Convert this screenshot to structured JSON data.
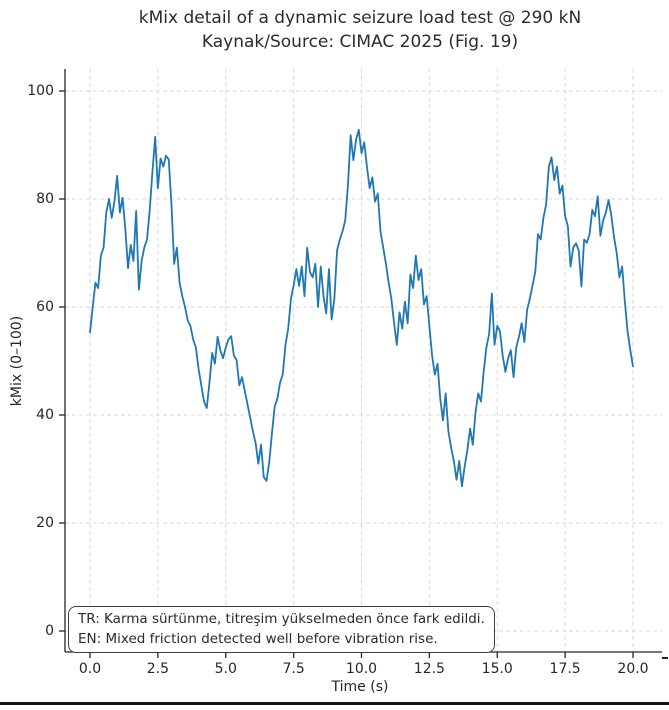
{
  "annotation": {
    "line1": "TR: Karma sürtünme, titreşim yükselmeden önce fark edildi.",
    "line2": "EN: Mixed friction detected well before vibration rise."
  },
  "axes": {
    "x_tick_labels": [
      "0.0",
      "2.5",
      "5.0",
      "7.5",
      "10.0",
      "12.5",
      "15.0",
      "17.5",
      "20.0"
    ],
    "x_tick_values": [
      0,
      2.5,
      5,
      7.5,
      10,
      12.5,
      15,
      17.5,
      20
    ],
    "y_tick_labels": [
      "0",
      "20",
      "40",
      "60",
      "80",
      "100"
    ],
    "y_tick_values": [
      0,
      20,
      40,
      60,
      80,
      100
    ]
  },
  "colors": {
    "line": "#1f77b4",
    "grid": "#d9d9d9",
    "spine": "#262626",
    "text": "#262626"
  },
  "chart_data": {
    "type": "line",
    "title": "kMix detail of a dynamic seizure load test @ 290 kN",
    "subtitle": "Kaynak/Source: CIMAC 2025 (Fig. 19)",
    "xlabel": "Time (s)",
    "ylabel": "kMix (0–100)",
    "xlim": [
      -1,
      21
    ],
    "ylim": [
      -4,
      104
    ],
    "grid": true,
    "legend": false,
    "series": [
      {
        "name": "kMix",
        "t_start": 0,
        "t_step": 0.1,
        "values": [
          55.3,
          60.0,
          64.5,
          63.5,
          69.5,
          71.0,
          77.5,
          80.0,
          76.5,
          79.5,
          84.3,
          77.5,
          80.2,
          74.5,
          67.2,
          71.5,
          68.5,
          77.8,
          63.2,
          68.5,
          71.0,
          72.5,
          78.0,
          85.0,
          91.5,
          82.0,
          87.5,
          86.0,
          88.0,
          87.3,
          79.0,
          68.0,
          71.0,
          64.5,
          62.0,
          60.0,
          57.5,
          56.5,
          54.0,
          52.5,
          48.5,
          45.5,
          42.5,
          41.3,
          46.0,
          51.5,
          49.5,
          54.5,
          52.0,
          50.5,
          52.5,
          54.0,
          54.6,
          51.0,
          50.2,
          45.5,
          47.0,
          44.5,
          42.0,
          39.5,
          37.0,
          34.8,
          31.0,
          34.5,
          28.5,
          27.8,
          31.2,
          36.5,
          41.5,
          43.0,
          46.0,
          47.5,
          53.0,
          56.0,
          61.5,
          64.0,
          67.0,
          63.9,
          67.5,
          62.0,
          71.0,
          66.5,
          65.5,
          68.0,
          60.0,
          67.5,
          62.0,
          58.8,
          67.0,
          57.7,
          61.5,
          70.5,
          72.5,
          74.0,
          76.0,
          82.5,
          91.8,
          87.2,
          91.0,
          92.8,
          88.5,
          90.5,
          86.0,
          82.0,
          84.0,
          79.5,
          81.0,
          74.0,
          71.0,
          68.0,
          64.5,
          61.5,
          57.0,
          53.0,
          59.0,
          56.0,
          61.0,
          57.0,
          66.0,
          63.5,
          69.5,
          65.0,
          67.0,
          60.5,
          62.0,
          56.5,
          51.0,
          47.5,
          49.5,
          43.0,
          39.0,
          44.0,
          37.0,
          34.0,
          31.5,
          28.0,
          31.5,
          26.8,
          30.5,
          33.5,
          37.5,
          34.5,
          40.5,
          44.0,
          42.5,
          48.0,
          52.5,
          55.0,
          62.5,
          53.0,
          56.5,
          55.5,
          51.0,
          48.0,
          50.5,
          52.0,
          47.0,
          52.5,
          54.5,
          57.0,
          53.5,
          59.5,
          61.5,
          64.0,
          66.5,
          73.5,
          72.5,
          76.5,
          79.0,
          86.0,
          87.7,
          83.5,
          86.0,
          81.0,
          82.5,
          76.8,
          75.0,
          67.5,
          71.0,
          71.8,
          70.5,
          63.8,
          72.5,
          71.9,
          73.5,
          78.0,
          76.8,
          80.5,
          73.2,
          76.0,
          77.5,
          79.8,
          77.0,
          73.0,
          70.0,
          65.5,
          67.5,
          61.0,
          55.5,
          52.0,
          49.0
        ]
      }
    ]
  }
}
